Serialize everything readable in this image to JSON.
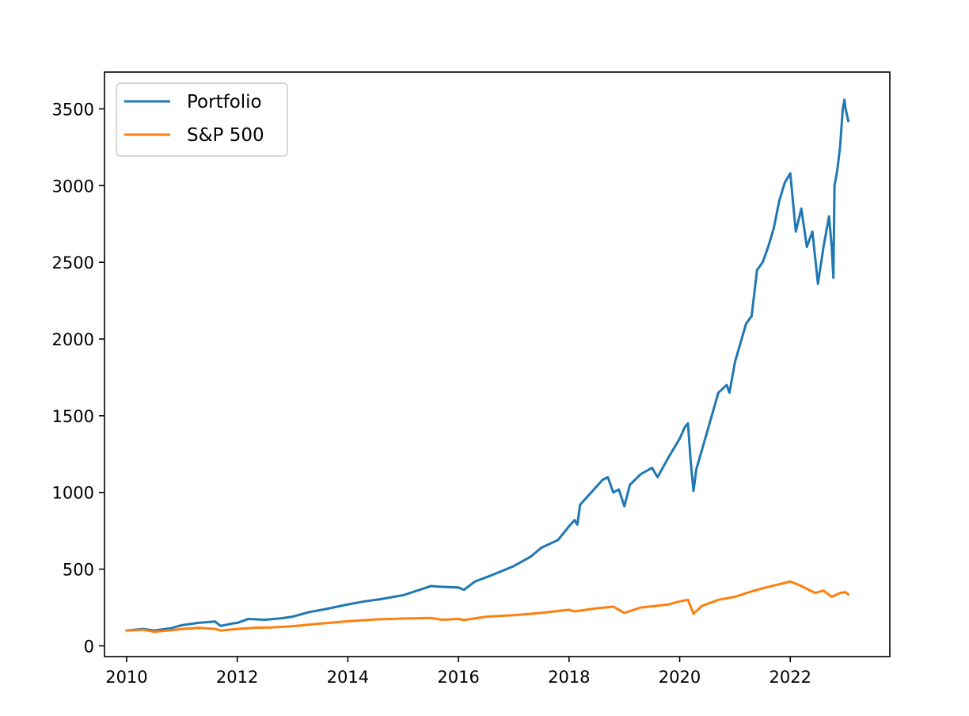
{
  "chart_data": {
    "type": "line",
    "title": "",
    "xlabel": "",
    "ylabel": "",
    "xlim": [
      2009.6,
      2023.8
    ],
    "ylim": [
      -70,
      3740
    ],
    "grid": false,
    "legend_position": "top-left",
    "x_ticks": [
      {
        "value": 2010,
        "label": "2010"
      },
      {
        "value": 2012,
        "label": "2012"
      },
      {
        "value": 2014,
        "label": "2014"
      },
      {
        "value": 2016,
        "label": "2016"
      },
      {
        "value": 2018,
        "label": "2018"
      },
      {
        "value": 2020,
        "label": "2020"
      },
      {
        "value": 2022,
        "label": "2022"
      }
    ],
    "y_ticks": [
      {
        "value": 0,
        "label": "0"
      },
      {
        "value": 500,
        "label": "500"
      },
      {
        "value": 1000,
        "label": "1000"
      },
      {
        "value": 1500,
        "label": "1500"
      },
      {
        "value": 2000,
        "label": "2000"
      },
      {
        "value": 2500,
        "label": "2500"
      },
      {
        "value": 3000,
        "label": "3000"
      },
      {
        "value": 3500,
        "label": "3500"
      }
    ],
    "series": [
      {
        "name": "Portfolio",
        "color": "#1f77b4",
        "points": [
          [
            2010.0,
            100
          ],
          [
            2010.3,
            110
          ],
          [
            2010.5,
            100
          ],
          [
            2010.8,
            115
          ],
          [
            2011.0,
            135
          ],
          [
            2011.3,
            150
          ],
          [
            2011.6,
            158
          ],
          [
            2011.7,
            130
          ],
          [
            2011.9,
            145
          ],
          [
            2012.0,
            150
          ],
          [
            2012.2,
            175
          ],
          [
            2012.5,
            170
          ],
          [
            2012.8,
            180
          ],
          [
            2013.0,
            190
          ],
          [
            2013.3,
            220
          ],
          [
            2013.6,
            240
          ],
          [
            2014.0,
            270
          ],
          [
            2014.3,
            290
          ],
          [
            2014.6,
            305
          ],
          [
            2015.0,
            330
          ],
          [
            2015.3,
            365
          ],
          [
            2015.5,
            390
          ],
          [
            2015.7,
            385
          ],
          [
            2016.0,
            380
          ],
          [
            2016.1,
            365
          ],
          [
            2016.3,
            420
          ],
          [
            2016.6,
            460
          ],
          [
            2017.0,
            520
          ],
          [
            2017.3,
            580
          ],
          [
            2017.5,
            640
          ],
          [
            2017.8,
            690
          ],
          [
            2018.0,
            780
          ],
          [
            2018.1,
            820
          ],
          [
            2018.15,
            790
          ],
          [
            2018.2,
            920
          ],
          [
            2018.4,
            1000
          ],
          [
            2018.6,
            1080
          ],
          [
            2018.7,
            1100
          ],
          [
            2018.8,
            1000
          ],
          [
            2018.9,
            1020
          ],
          [
            2019.0,
            910
          ],
          [
            2019.1,
            1050
          ],
          [
            2019.3,
            1120
          ],
          [
            2019.5,
            1160
          ],
          [
            2019.6,
            1100
          ],
          [
            2019.8,
            1230
          ],
          [
            2020.0,
            1350
          ],
          [
            2020.1,
            1430
          ],
          [
            2020.15,
            1450
          ],
          [
            2020.2,
            1200
          ],
          [
            2020.25,
            1010
          ],
          [
            2020.3,
            1150
          ],
          [
            2020.5,
            1400
          ],
          [
            2020.7,
            1650
          ],
          [
            2020.85,
            1700
          ],
          [
            2020.9,
            1650
          ],
          [
            2021.0,
            1850
          ],
          [
            2021.2,
            2100
          ],
          [
            2021.3,
            2150
          ],
          [
            2021.4,
            2450
          ],
          [
            2021.5,
            2500
          ],
          [
            2021.6,
            2600
          ],
          [
            2021.7,
            2720
          ],
          [
            2021.8,
            2900
          ],
          [
            2021.9,
            3020
          ],
          [
            2022.0,
            3080
          ],
          [
            2022.1,
            2700
          ],
          [
            2022.2,
            2850
          ],
          [
            2022.3,
            2600
          ],
          [
            2022.4,
            2700
          ],
          [
            2022.5,
            2360
          ],
          [
            2022.6,
            2600
          ],
          [
            2022.7,
            2800
          ],
          [
            2022.75,
            2600
          ],
          [
            2022.78,
            2400
          ],
          [
            2022.8,
            3000
          ],
          [
            2022.85,
            3100
          ],
          [
            2022.9,
            3250
          ],
          [
            2022.95,
            3500
          ],
          [
            2022.98,
            3560
          ],
          [
            2023.0,
            3500
          ],
          [
            2023.05,
            3420
          ]
        ]
      },
      {
        "name": "S&P 500",
        "color": "#ff7f0e",
        "points": [
          [
            2010.0,
            100
          ],
          [
            2010.3,
            105
          ],
          [
            2010.5,
            92
          ],
          [
            2010.8,
            102
          ],
          [
            2011.0,
            110
          ],
          [
            2011.3,
            118
          ],
          [
            2011.6,
            110
          ],
          [
            2011.7,
            100
          ],
          [
            2012.0,
            110
          ],
          [
            2012.3,
            118
          ],
          [
            2012.6,
            120
          ],
          [
            2013.0,
            128
          ],
          [
            2013.5,
            145
          ],
          [
            2014.0,
            160
          ],
          [
            2014.5,
            172
          ],
          [
            2015.0,
            178
          ],
          [
            2015.5,
            182
          ],
          [
            2015.7,
            170
          ],
          [
            2016.0,
            175
          ],
          [
            2016.1,
            168
          ],
          [
            2016.5,
            190
          ],
          [
            2017.0,
            200
          ],
          [
            2017.5,
            215
          ],
          [
            2018.0,
            235
          ],
          [
            2018.1,
            225
          ],
          [
            2018.5,
            245
          ],
          [
            2018.8,
            255
          ],
          [
            2019.0,
            215
          ],
          [
            2019.3,
            250
          ],
          [
            2019.6,
            262
          ],
          [
            2019.8,
            270
          ],
          [
            2020.0,
            290
          ],
          [
            2020.15,
            300
          ],
          [
            2020.25,
            210
          ],
          [
            2020.4,
            260
          ],
          [
            2020.7,
            300
          ],
          [
            2021.0,
            320
          ],
          [
            2021.3,
            355
          ],
          [
            2021.6,
            385
          ],
          [
            2021.9,
            410
          ],
          [
            2022.0,
            420
          ],
          [
            2022.2,
            390
          ],
          [
            2022.45,
            345
          ],
          [
            2022.6,
            360
          ],
          [
            2022.75,
            320
          ],
          [
            2022.9,
            345
          ],
          [
            2023.0,
            350
          ],
          [
            2023.05,
            335
          ]
        ]
      }
    ]
  }
}
